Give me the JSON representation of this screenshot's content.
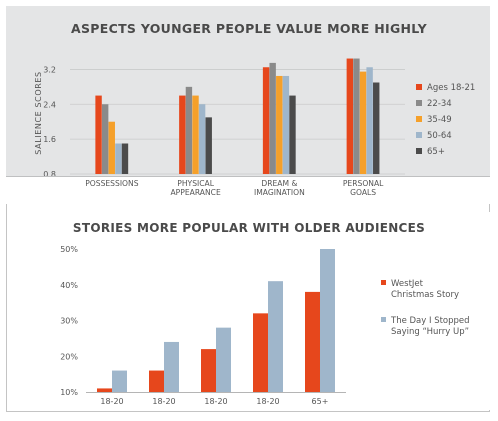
{
  "colors": {
    "orange_red": "#e6471c",
    "gray": "#8a8a8a",
    "orange": "#f5a02a",
    "light_blue": "#9fb6cb",
    "dark": "#4b4b4b",
    "panel": "#e4e5e6"
  },
  "chart_data": [
    {
      "type": "bar",
      "title": "ASPECTS YOUNGER PEOPLE VALUE MORE HIGHLY",
      "ylabel": "SALIENCE SCORES",
      "xlabel": "",
      "ylim": [
        0.8,
        3.6
      ],
      "yticks": [
        "0.8",
        "1.6",
        "2.4",
        "3.2"
      ],
      "ytick_values": [
        0.8,
        1.6,
        2.4,
        3.2
      ],
      "grid": true,
      "legend_position": "right",
      "categories": [
        [
          "POSSESSIONS"
        ],
        [
          "PHYSICAL",
          "APPEARANCE"
        ],
        [
          "DREAM &",
          "IMAGINATION"
        ],
        [
          "PERSONAL",
          "GOALS"
        ]
      ],
      "series": [
        {
          "name": "Ages 18-21",
          "color": "#e6471c",
          "values": [
            2.6,
            2.6,
            3.25,
            3.45
          ]
        },
        {
          "name": "22-34",
          "color": "#8a8a8a",
          "values": [
            2.4,
            2.8,
            3.35,
            3.45
          ]
        },
        {
          "name": "35-49",
          "color": "#f5a02a",
          "values": [
            2.0,
            2.6,
            3.05,
            3.15
          ]
        },
        {
          "name": "50-64",
          "color": "#9fb6cb",
          "values": [
            1.5,
            2.4,
            3.05,
            3.25
          ]
        },
        {
          "name": "65+",
          "color": "#4b4b4b",
          "values": [
            1.5,
            2.1,
            2.6,
            2.9
          ]
        }
      ]
    },
    {
      "type": "bar",
      "title": "STORIES MORE POPULAR WITH OLDER AUDIENCES",
      "xlabel": "",
      "ylabel": "",
      "ylim": [
        10,
        50
      ],
      "yticks": [
        "10%",
        "20%",
        "30%",
        "40%",
        "50%"
      ],
      "ytick_values": [
        10,
        20,
        30,
        40,
        50
      ],
      "grid": false,
      "legend_position": "right",
      "categories": [
        "18-20",
        "18-20",
        "18-20",
        "18-20",
        "65+"
      ],
      "series": [
        {
          "name": "WestJet Christmas Story",
          "name_lines": [
            "WestJet",
            "Christmas Story"
          ],
          "color": "#e6471c",
          "values": [
            11,
            16,
            22,
            32,
            38
          ]
        },
        {
          "name": "The Day I Stopped Saying “Hurry Up”",
          "name_lines": [
            "The Day I Stopped",
            "Saying “Hurry Up”"
          ],
          "color": "#9fb6cb",
          "values": [
            16,
            24,
            28,
            41,
            50
          ]
        }
      ]
    }
  ]
}
